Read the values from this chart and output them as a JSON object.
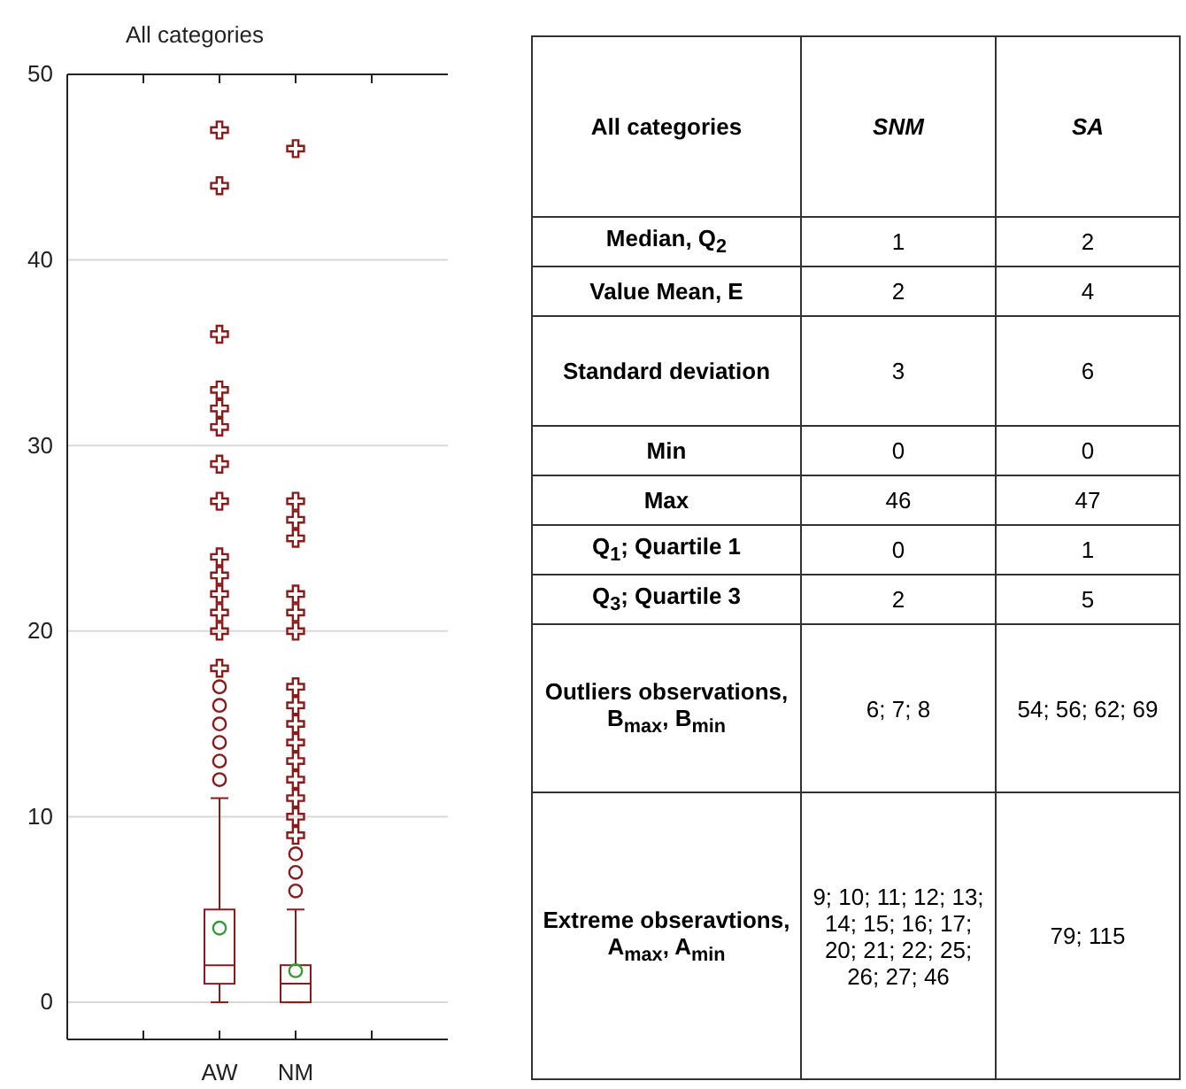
{
  "chart_data": [
    {
      "type": "box",
      "title": "All categories",
      "categories": [
        "AW",
        "NM"
      ],
      "ylim": [
        -2,
        50
      ],
      "yticks": [
        0,
        10,
        20,
        30,
        40,
        50
      ],
      "grid": "y",
      "series": [
        {
          "type": "box",
          "color": "#8b1a1a",
          "boxes": [
            {
              "low": 0,
              "q1": 1,
              "median": 2,
              "q3": 5,
              "high": 11,
              "mean": 4,
              "outliers": [
                12,
                13,
                14,
                15,
                16,
                17
              ]
            },
            {
              "low": 0,
              "q1": 0,
              "median": 1,
              "q3": 2,
              "high": 5,
              "mean": 1.7,
              "outliers": [
                6,
                7,
                8
              ]
            }
          ]
        },
        {
          "type": "scatter",
          "marker": "cross",
          "color": "#8b1a1a",
          "x": [
            "AW",
            "AW",
            "AW",
            "AW",
            "AW",
            "AW",
            "AW",
            "AW",
            "AW",
            "AW",
            "AW",
            "AW",
            "AW",
            "AW",
            "NM",
            "NM",
            "NM",
            "NM",
            "NM",
            "NM",
            "NM",
            "NM",
            "NM",
            "NM",
            "NM",
            "NM",
            "NM",
            "NM",
            "NM",
            "NM"
          ],
          "values": [
            18,
            20,
            21,
            22,
            23,
            24,
            27,
            29,
            31,
            32,
            33,
            36,
            44,
            47,
            9,
            10,
            11,
            12,
            13,
            14,
            15,
            16,
            17,
            20,
            21,
            22,
            25,
            26,
            27,
            46
          ]
        }
      ]
    },
    {
      "type": "other",
      "annotations": [
        "All categories",
        "SNM",
        "SA",
        "Median, Q$_{2}$",
        "1",
        "2",
        "Value Mean, E",
        "2",
        "4",
        "Standard deviation",
        "3",
        "6",
        "Min",
        "0",
        "0",
        "Max",
        "46",
        "47",
        "Q$_{1}$; Quartile 1",
        "0",
        "1",
        "Q$_{3}$; Quartile 3",
        "2",
        "5",
        "Outliers observations, B$_{max}$, B$_{min}$",
        "6; 7; 8",
        "54; 56; 62; 69",
        "Extreme obseravtions, A$_{max}$, A$_{min}$",
        "9; 10; 11; 12; 13; 14; 15; 16; 17; 20; 21; 22; 25; 26; 27; 46",
        "79; 115"
      ]
    }
  ]
}
